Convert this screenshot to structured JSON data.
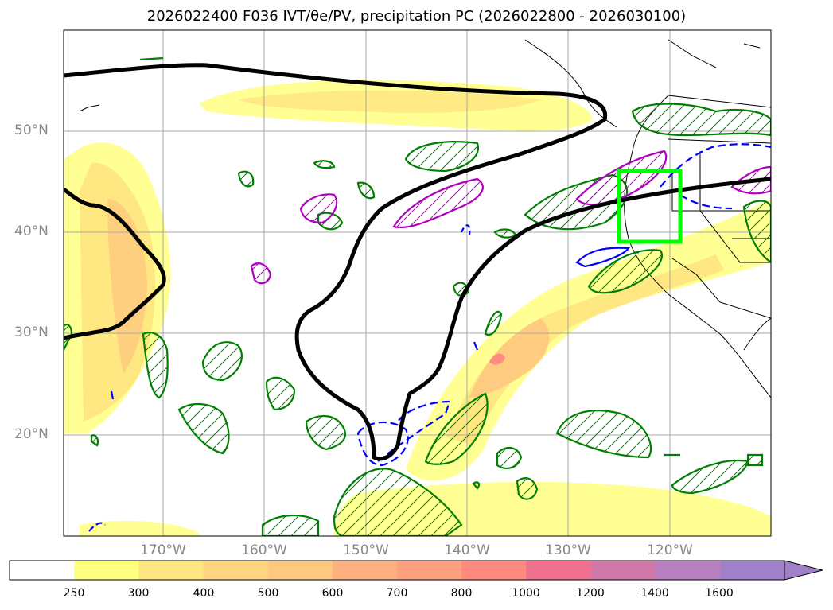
{
  "title": "2026022400 F036 IVT/θe/PV, precipitation PC (2026022800 - 2026030100)",
  "lat_labels": [
    "50°N",
    "40°N",
    "30°N",
    "20°N"
  ],
  "lon_labels": [
    "170°W",
    "160°W",
    "150°W",
    "140°W",
    "130°W",
    "120°W"
  ],
  "colorbar": {
    "ticks": [
      "250",
      "300",
      "400",
      "500",
      "600",
      "700",
      "800",
      "1000",
      "1200",
      "1400",
      "1600"
    ],
    "colors": [
      "#ffffff",
      "#ffff80",
      "#ffe680",
      "#ffd680",
      "#ffc880",
      "#ffb080",
      "#ffa080",
      "#ff8a80",
      "#f07090",
      "#d078a8",
      "#b880c0",
      "#a080c8"
    ]
  },
  "colors": {
    "ivt_line": "#000000",
    "precip_contour": "#008000",
    "pv_positive": "#b000c0",
    "pv_negative": "#0000ff",
    "region_box": "#00ff00",
    "grid": "#aaaaaa"
  }
}
